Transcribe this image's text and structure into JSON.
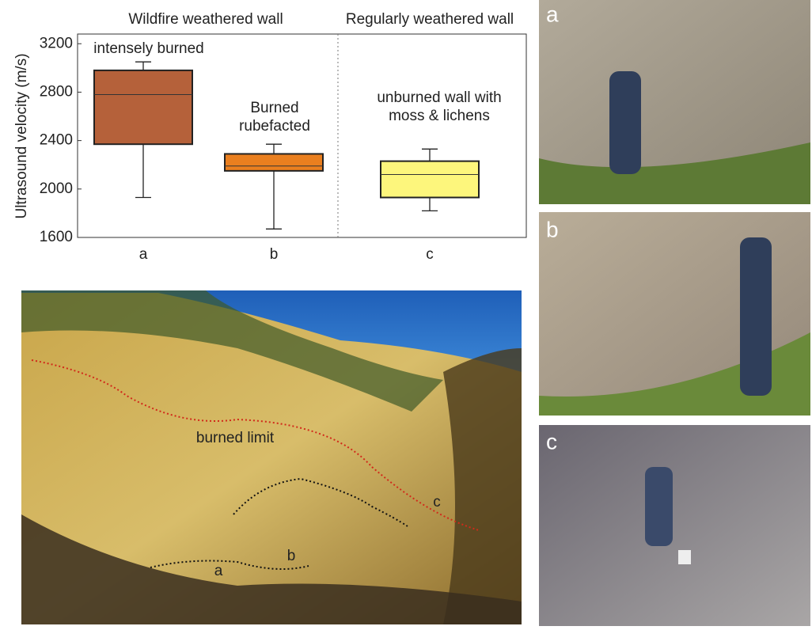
{
  "chart_data": {
    "type": "box",
    "sections": [
      "Wildfire weathered wall",
      "Regularly weathered wall"
    ],
    "y_label": "Ultrasound velocity (m/s)",
    "categories": [
      "a",
      "b",
      "c"
    ],
    "boxes": [
      {
        "min": 1930,
        "q1": 2370,
        "median": 2780,
        "q3": 2980,
        "max": 3050,
        "color": "#b5613a",
        "annotation": [
          "intensely burned"
        ]
      },
      {
        "min": 1670,
        "q1": 2150,
        "median": 2190,
        "q3": 2290,
        "max": 2370,
        "color": "#ea7f1f",
        "annotation": [
          "Burned",
          "rubefacted"
        ]
      },
      {
        "min": 1820,
        "q1": 1930,
        "median": 2120,
        "q3": 2230,
        "max": 2330,
        "color": "#fdf67c",
        "annotation": [
          "unburned wall with",
          "moss & lichens"
        ]
      }
    ],
    "ylim": [
      1600,
      3280
    ],
    "yticks": [
      1600,
      2000,
      2400,
      2800,
      3200
    ]
  },
  "photos": {
    "main": {
      "burned_limit": "burned limit",
      "labels": [
        "a",
        "b",
        "c"
      ]
    },
    "side": [
      "a",
      "b",
      "c"
    ]
  }
}
